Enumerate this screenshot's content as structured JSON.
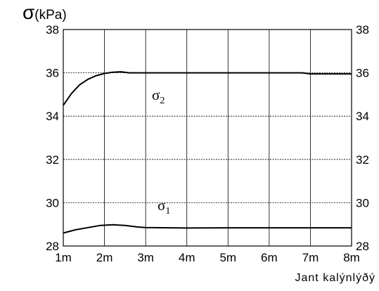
{
  "chart_data": {
    "type": "line",
    "ylabel_symbol": "σ",
    "ylabel_unit": "(kPa)",
    "xlabel": "Jant kalýnlýðý",
    "x_ticks": [
      "1m",
      "2m",
      "3m",
      "4m",
      "5m",
      "6m",
      "7m",
      "8m"
    ],
    "y_ticks": [
      28,
      30,
      32,
      34,
      36,
      38
    ],
    "ylim": [
      28,
      38
    ],
    "xlim": [
      1,
      8
    ],
    "grid": "horizontal dashed",
    "annotations": [
      {
        "text": "σ",
        "sub": "2",
        "series": "σ2"
      },
      {
        "text": "σ",
        "sub": "1",
        "series": "σ1"
      }
    ],
    "series": [
      {
        "name": "σ2",
        "x": [
          1.0,
          1.2,
          1.4,
          1.6,
          1.8,
          2.0,
          2.2,
          2.4,
          2.6,
          2.8,
          3.0,
          4.0,
          5.0,
          6.0,
          6.8,
          7.0,
          8.0
        ],
        "y": [
          34.5,
          35.05,
          35.45,
          35.7,
          35.87,
          35.97,
          36.03,
          36.05,
          36.0,
          36.0,
          36.0,
          36.0,
          36.0,
          36.0,
          36.0,
          35.95,
          35.95
        ]
      },
      {
        "name": "σ1",
        "x": [
          1.0,
          1.3,
          1.6,
          1.9,
          2.2,
          2.5,
          2.8,
          3.0,
          4.0,
          5.0,
          6.0,
          7.0,
          8.0
        ],
        "y": [
          28.6,
          28.75,
          28.85,
          28.95,
          28.98,
          28.95,
          28.88,
          28.85,
          28.83,
          28.84,
          28.84,
          28.84,
          28.84
        ]
      }
    ]
  }
}
